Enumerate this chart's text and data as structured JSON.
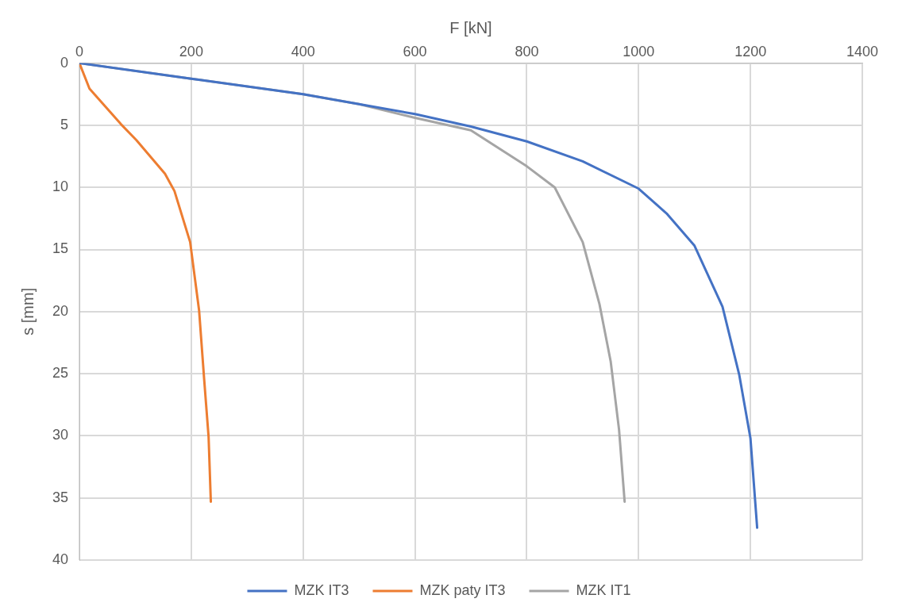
{
  "chart_data": {
    "type": "line",
    "xlabel": "F [kN]",
    "ylabel": "s [mm]",
    "xlim": [
      0,
      1400
    ],
    "xticks": [
      0,
      200,
      400,
      600,
      800,
      1000,
      1200,
      1400
    ],
    "ylim": [
      40,
      0
    ],
    "yticks": [
      0,
      5,
      10,
      15,
      20,
      25,
      30,
      35,
      40
    ],
    "grid": true,
    "legend": "bottom",
    "marker": "none",
    "line_style": "solid",
    "series": [
      {
        "name": "MZK IT3",
        "color": "#4472c4",
        "x": [
          0,
          200,
          400,
          600,
          700,
          800,
          900,
          1000,
          1050,
          1100,
          1150,
          1180,
          1200,
          1212
        ],
        "values": [
          0,
          1.25,
          2.5,
          4.1,
          5.1,
          6.3,
          7.9,
          10.1,
          12.1,
          14.7,
          19.6,
          25.1,
          30.2,
          37.4
        ]
      },
      {
        "name": "MZK paty IT3",
        "color": "#ed7d31",
        "x": [
          0,
          18,
          74,
          102,
          153,
          170,
          198,
          214,
          223,
          231,
          235
        ],
        "values": [
          0,
          2.05,
          4.9,
          6.2,
          8.9,
          10.3,
          14.4,
          19.9,
          25.4,
          30.1,
          35.3
        ]
      },
      {
        "name": "MZK IT1",
        "color": "#a5a5a5",
        "x": [
          0,
          200,
          400,
          500,
          600,
          700,
          800,
          850,
          900,
          930,
          950,
          965,
          975
        ],
        "values": [
          0,
          1.25,
          2.5,
          3.3,
          4.4,
          5.4,
          8.3,
          10.0,
          14.4,
          19.4,
          24.0,
          29.5,
          35.3
        ]
      }
    ]
  }
}
